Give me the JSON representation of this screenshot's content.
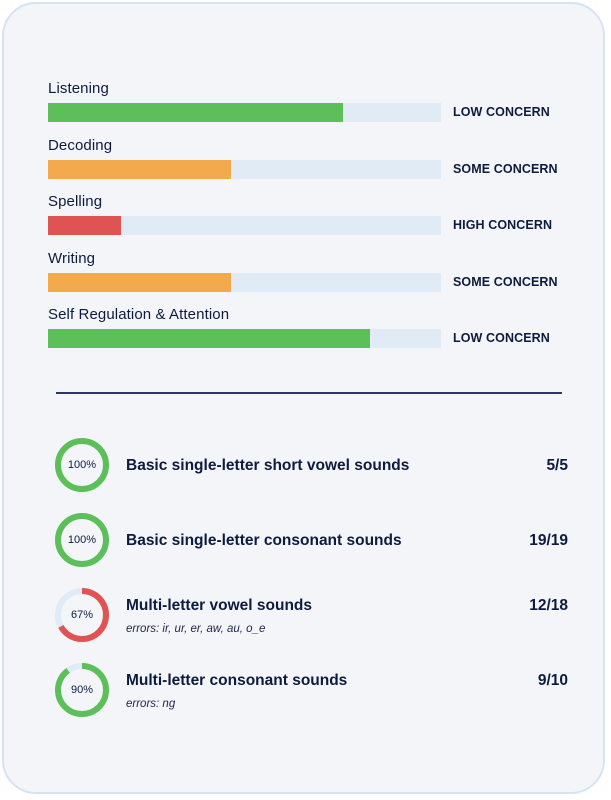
{
  "concerns": [
    {
      "label": "Listening",
      "level": 0.75,
      "status": "LOW CONCERN",
      "color": "#5cbf5a"
    },
    {
      "label": "Decoding",
      "level": 0.465,
      "status": "SOME CONCERN",
      "color": "#f3aa4d"
    },
    {
      "label": "Spelling",
      "level": 0.185,
      "status": "HIGH CONCERN",
      "color": "#df5353"
    },
    {
      "label": "Writing",
      "level": 0.465,
      "status": "SOME CONCERN",
      "color": "#f3aa4d"
    },
    {
      "label": "Self Regulation & Attention",
      "level": 0.82,
      "status": "LOW CONCERN",
      "color": "#5cbf5a"
    }
  ],
  "skills": [
    {
      "percent_label": "100%",
      "percent": 100,
      "name": "Basic single-letter short vowel sounds",
      "errors": "",
      "score": "5/5",
      "ring_color": "#5cbf5a"
    },
    {
      "percent_label": "100%",
      "percent": 100,
      "name": "Basic single-letter consonant sounds",
      "errors": "",
      "score": "19/19",
      "ring_color": "#5cbf5a"
    },
    {
      "percent_label": "67%",
      "percent": 67,
      "name": "Multi-letter vowel sounds",
      "errors": "errors: ir, ur, er, aw, au, o_e",
      "score": "12/18",
      "ring_color": "#df5353"
    },
    {
      "percent_label": "90%",
      "percent": 90,
      "name": "Multi-letter consonant sounds",
      "errors": "errors: ng",
      "score": "9/10",
      "ring_color": "#5cbf5a"
    }
  ],
  "colors": {
    "ring_track": "#e0ebf6",
    "bar_track": "#e0ebf6",
    "divider": "#2b3566"
  }
}
